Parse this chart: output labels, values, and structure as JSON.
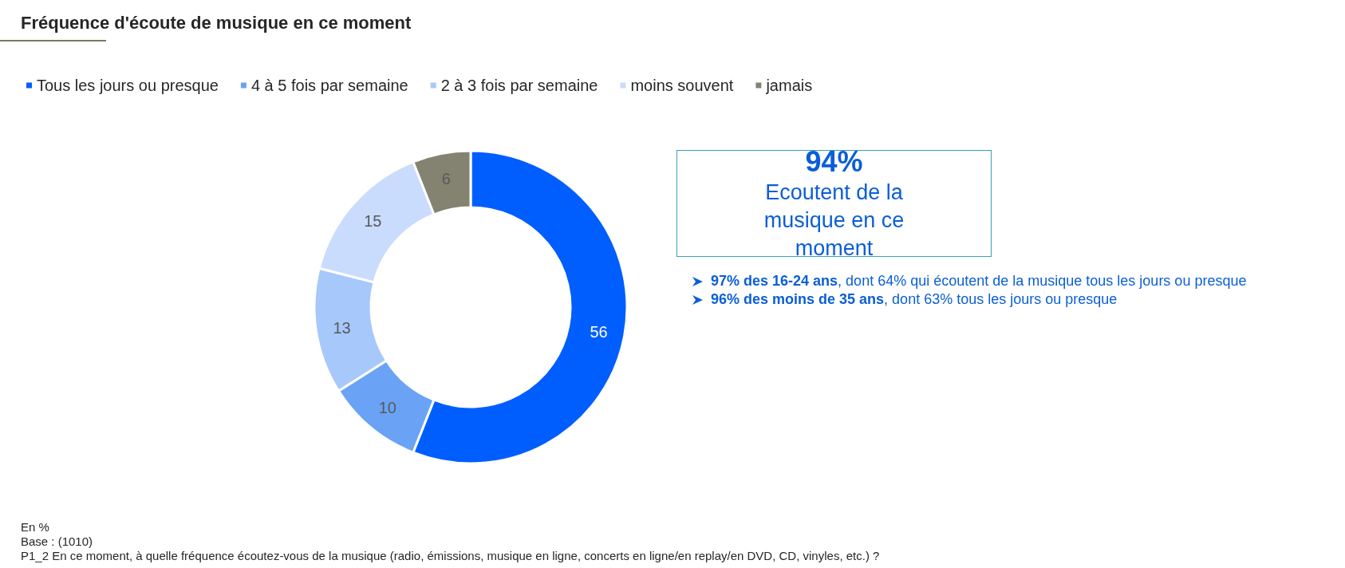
{
  "chart_data": {
    "type": "donut",
    "title": "Fréquence d'écoute de musique en ce moment",
    "categories": [
      "Tous les jours ou presque",
      "4 à 5 fois par semaine",
      "2 à 3 fois par semaine",
      "moins souvent",
      "jamais"
    ],
    "values": [
      56,
      10,
      13,
      15,
      6
    ],
    "colors": [
      "#005eff",
      "#6aa3f5",
      "#a7c8fb",
      "#c9dcfd",
      "#848372"
    ],
    "data_labels": true,
    "legend": "top left",
    "annotations": [
      "94%",
      "Ecoutent de la musique en ce moment",
      "97% des 16-24 ans, dont 64% qui écoutent de la musique tous les jours ou presque",
      "96% des moins de 35 ans, dont 63% tous les jours ou presque",
      "En %",
      "Base : (1010)",
      "P1_2 En ce moment, à quelle fréquence écoutez-vous de la musique (radio, émissions, musique en ligne, concerts en ligne/en replay/en DVD, CD, vinyles, etc.) ?"
    ]
  }
}
